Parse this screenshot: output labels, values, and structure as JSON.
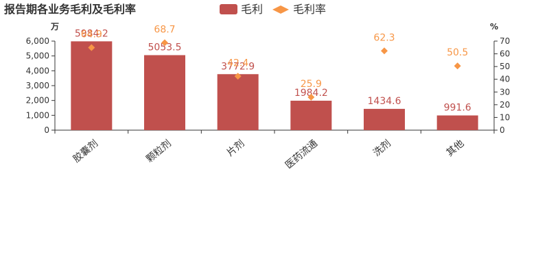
{
  "chart_data": {
    "type": "bar",
    "title": "报告期各业务毛利及毛利率",
    "categories": [
      "胶囊剂",
      "颗粒剂",
      "片剂",
      "医药流通",
      "洗剂",
      "其他"
    ],
    "series": [
      {
        "name": "毛利",
        "type": "bar",
        "axis": "left",
        "color": "#c0504d",
        "values": [
          5984.2,
          5053.5,
          3772.9,
          1984.2,
          1434.6,
          991.6
        ],
        "labels": [
          "5984.2",
          "5053.5",
          "3772.9",
          "1984.2",
          "1434.6",
          "991.6"
        ]
      },
      {
        "name": "毛利率",
        "type": "scatter",
        "axis": "right",
        "color": "#f79646",
        "values": [
          64.9,
          68.7,
          42.4,
          25.9,
          62.3,
          50.5
        ],
        "labels": [
          "64.9",
          "68.7",
          "42.4",
          "25.9",
          "62.3",
          "50.5"
        ]
      }
    ],
    "y_left": {
      "unit": "万",
      "min": 0,
      "max": 6000,
      "ticks": [
        0,
        1000,
        2000,
        3000,
        4000,
        5000,
        6000
      ],
      "tick_labels": [
        "0",
        "1,000",
        "2,000",
        "3,000",
        "4,000",
        "5,000",
        "6,000"
      ]
    },
    "y_right": {
      "unit": "%",
      "min": 0,
      "max": 70,
      "ticks": [
        0,
        10,
        20,
        30,
        40,
        50,
        60,
        70
      ],
      "tick_labels": [
        "0",
        "10",
        "20",
        "30",
        "40",
        "50",
        "60",
        "70"
      ]
    },
    "grid": false,
    "legend_position": "top-center"
  }
}
